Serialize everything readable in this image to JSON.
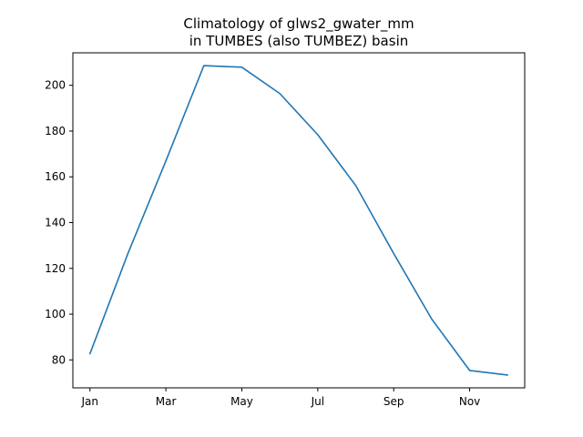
{
  "chart_data": {
    "type": "line",
    "title_line1": "Climatology of glws2_gwater_mm",
    "title_line2": "in TUMBES (also TUMBEZ) basin",
    "xlabel": "",
    "ylabel": "",
    "x": [
      1,
      2,
      3,
      4,
      5,
      6,
      7,
      8,
      9,
      10,
      11,
      12
    ],
    "x_ticks": [
      {
        "value": 1,
        "label": "Jan"
      },
      {
        "value": 3,
        "label": "Mar"
      },
      {
        "value": 5,
        "label": "May"
      },
      {
        "value": 7,
        "label": "Jul"
      },
      {
        "value": 9,
        "label": "Sep"
      },
      {
        "value": 11,
        "label": "Nov"
      }
    ],
    "y_ticks": [
      80,
      100,
      120,
      140,
      160,
      180,
      200
    ],
    "xlim": [
      0.55,
      12.45
    ],
    "ylim": [
      67.8,
      214.2
    ],
    "grid": false,
    "series": [
      {
        "color": "#1f77b4",
        "values": [
          82.7,
          126.5,
          167.0,
          208.6,
          207.9,
          196.4,
          178.4,
          156.2,
          126.5,
          97.9,
          75.4,
          73.4
        ]
      }
    ]
  }
}
